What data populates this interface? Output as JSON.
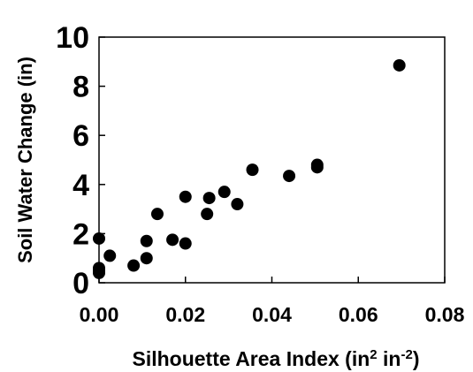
{
  "chart_data": {
    "type": "scatter",
    "title": "",
    "xlabel": {
      "main": "Silhouette Area Index (in",
      "sup1": "2",
      "mid": " in",
      "sup2": "-2",
      "end": ")"
    },
    "ylabel": "Soil Water Change (in)",
    "xlim": [
      0.0,
      0.08
    ],
    "ylim": [
      0,
      10
    ],
    "x_ticks": [
      "0.00",
      "0.02",
      "0.04",
      "0.06",
      "0.08"
    ],
    "y_ticks": [
      "0",
      "2",
      "4",
      "6",
      "8",
      "10"
    ],
    "grid": false,
    "legend": "none",
    "marker_color": "#000000",
    "series": [
      {
        "points": [
          [
            0.0,
            1.8
          ],
          [
            0.0,
            0.6
          ],
          [
            0.0,
            0.5
          ],
          [
            0.0,
            0.4
          ],
          [
            0.0025,
            1.1
          ],
          [
            0.008,
            0.7
          ],
          [
            0.011,
            1.0
          ],
          [
            0.011,
            1.7
          ],
          [
            0.0135,
            2.8
          ],
          [
            0.017,
            1.75
          ],
          [
            0.02,
            1.6
          ],
          [
            0.02,
            3.5
          ],
          [
            0.025,
            2.8
          ],
          [
            0.0255,
            3.45
          ],
          [
            0.029,
            3.7
          ],
          [
            0.032,
            3.2
          ],
          [
            0.0355,
            4.6
          ],
          [
            0.044,
            4.35
          ],
          [
            0.0505,
            4.8
          ],
          [
            0.0505,
            4.7
          ],
          [
            0.0695,
            8.85
          ]
        ]
      }
    ]
  }
}
